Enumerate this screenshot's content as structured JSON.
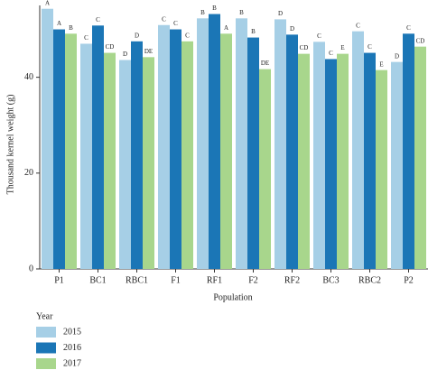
{
  "chart_data": {
    "type": "bar",
    "y_label": "Thousand kernel weight (g)",
    "x_label": "Population",
    "legend_title": "Year",
    "categories": [
      "P1",
      "BC1",
      "RBC1",
      "F1",
      "RF1",
      "F2",
      "RF2",
      "BC3",
      "RBC2",
      "P2"
    ],
    "series": [
      {
        "name": "2015",
        "color": "#a6cfe6",
        "values": [
          54.3,
          47.0,
          43.6,
          50.9,
          52.3,
          52.3,
          52.1,
          47.4,
          49.6,
          43.2
        ],
        "annotations": [
          "A",
          "C",
          "D",
          "C",
          "B",
          "B",
          "D",
          "C",
          "C",
          "D"
        ]
      },
      {
        "name": "2016",
        "color": "#1b76b6",
        "values": [
          50.0,
          50.8,
          47.5,
          50.0,
          53.2,
          48.3,
          48.9,
          43.8,
          45.1,
          49.1
        ],
        "annotations": [
          "A",
          "C",
          "D",
          "C",
          "B",
          "B",
          "D",
          "C",
          "C",
          "C"
        ]
      },
      {
        "name": "2017",
        "color": "#a8d68c",
        "values": [
          49.1,
          45.1,
          44.2,
          47.5,
          49.1,
          41.7,
          44.9,
          44.9,
          41.5,
          46.4
        ],
        "annotations": [
          "B",
          "CD",
          "DE",
          "C",
          "A",
          "DE",
          "CD",
          "E",
          "E",
          "CD"
        ]
      }
    ],
    "ylim": [
      0,
      55
    ],
    "yticks": [
      0,
      20,
      40
    ]
  }
}
